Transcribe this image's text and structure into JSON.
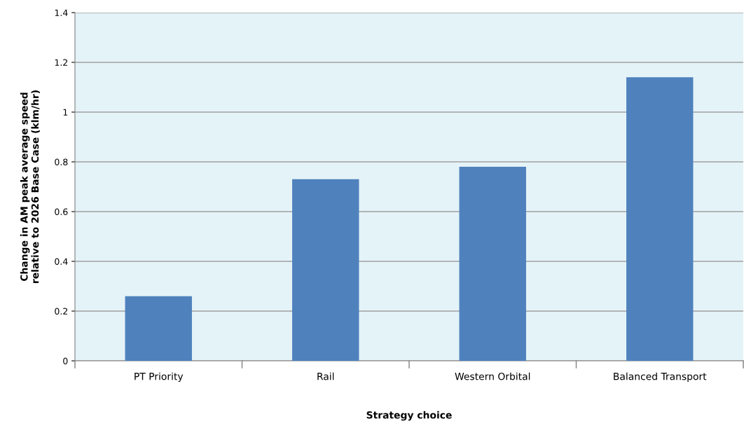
{
  "chart_data": {
    "type": "bar",
    "xlabel": "Strategy choice",
    "ylabel": "Change in AM peak average speed\nrelative to 2026 Base Case (klm/hr)",
    "categories": [
      "PT Priority",
      "Rail",
      "Western Orbital",
      "Balanced Transport"
    ],
    "values": [
      0.26,
      0.73,
      0.78,
      1.14
    ],
    "color": "#4f81bd",
    "ylim": [
      0,
      1.4
    ],
    "yticks": [
      0,
      {
        "value": 0.2,
        "label": "0.2"
      },
      {
        "value": 0.4,
        "label": "0.4"
      },
      {
        "value": 0.6,
        "label": "0.6"
      },
      {
        "value": 0.8,
        "label": "0.8"
      },
      1,
      {
        "value": 1.2,
        "label": "1.2"
      },
      {
        "value": 1.4,
        "label": "1.4"
      }
    ],
    "grid": "y",
    "legend": false
  }
}
